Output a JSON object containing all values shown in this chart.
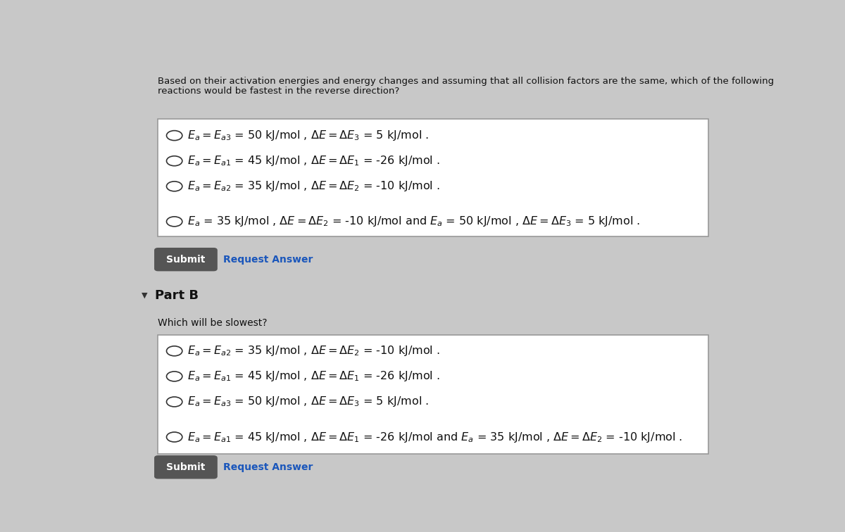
{
  "bg_color": "#c8c8c8",
  "box_bg": "#ffffff",
  "submit_bg": "#555555",
  "submit_text": "#ffffff",
  "title_text_line1": "Based on their activation energies and energy changes and assuming that all collision factors are the same, which of the following",
  "title_text_line2": "reactions would be fastest in the reverse direction?",
  "part_a_options": [
    "$E_a = E_{a3}$ = 50 kJ/mol , $\\Delta E = \\Delta E_3$ = 5 kJ/mol .",
    "$E_a = E_{a1}$ = 45 kJ/mol , $\\Delta E = \\Delta E_1$ = -26 kJ/mol .",
    "$E_a = E_{a2}$ = 35 kJ/mol , $\\Delta E = \\Delta E_2$ = -10 kJ/mol .",
    "$E_a$ = 35 kJ/mol , $\\Delta E = \\Delta E_2$ = -10 kJ/mol and $E_a$ = 50 kJ/mol , $\\Delta E = \\Delta E_3$ = 5 kJ/mol ."
  ],
  "part_b_title": "Which will be slowest?",
  "part_b_options": [
    "$E_a = E_{a2}$ = 35 kJ/mol , $\\Delta E = \\Delta E_2$ = -10 kJ/mol .",
    "$E_a = E_{a1}$ = 45 kJ/mol , $\\Delta E = \\Delta E_1$ = -26 kJ/mol .",
    "$E_a = E_{a3}$ = 50 kJ/mol , $\\Delta E = \\Delta E_3$ = 5 kJ/mol .",
    "$E_a = E_{a1}$ = 45 kJ/mol , $\\Delta E = \\Delta E_1$ = -26 kJ/mol and $E_a$ = 35 kJ/mol , $\\Delta E = \\Delta E_2$ = -10 kJ/mol ."
  ],
  "submit_label": "Submit",
  "request_label": "Request Answer",
  "part_b_label": "Part B",
  "title_fontsize": 9.5,
  "option_fontsize": 11.5,
  "submit_fontsize": 10,
  "part_label_fontsize": 13
}
